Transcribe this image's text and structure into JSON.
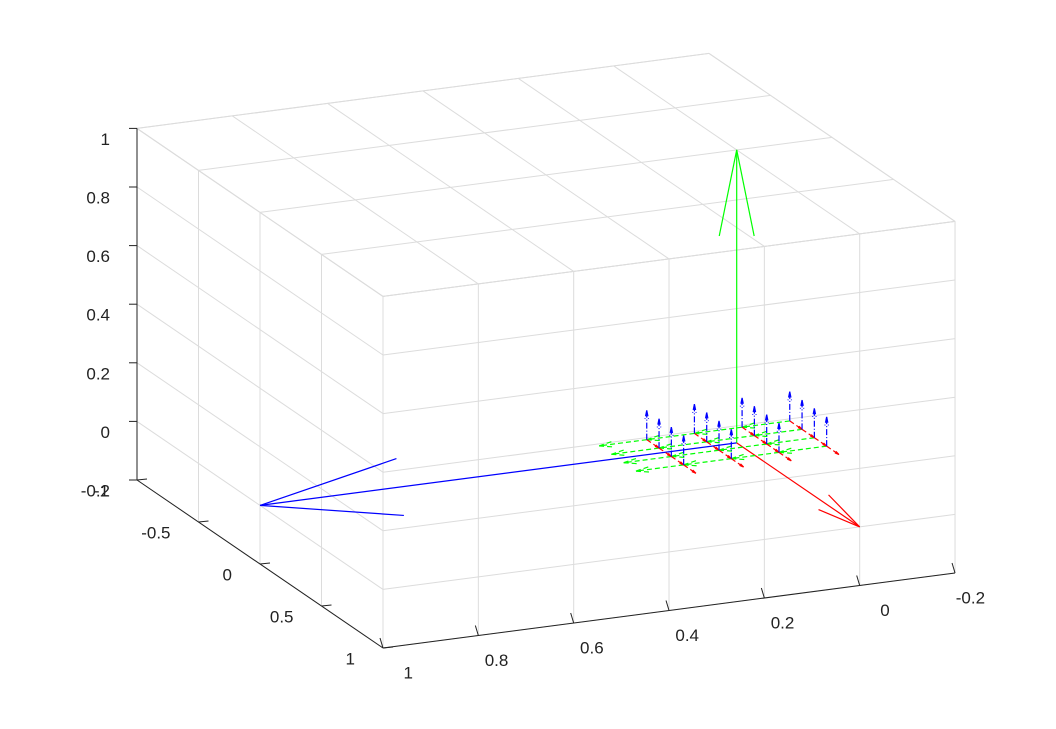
{
  "chart_data": {
    "type": "quiver3",
    "xlim": [
      -0.2,
      1
    ],
    "ylim": [
      -1,
      1
    ],
    "zlim": [
      -0.2,
      1
    ],
    "xticks": [
      -0.2,
      0,
      0.2,
      0.4,
      0.6,
      0.8,
      1
    ],
    "yticks": [
      -1,
      -0.5,
      0,
      0.5,
      1
    ],
    "zticks": [
      -0.2,
      0,
      0.2,
      0.4,
      0.6,
      0.8,
      1
    ],
    "grid": true,
    "quiver": [
      {
        "x": [
          0
        ],
        "y": [
          0
        ],
        "z": [
          0
        ],
        "series": [
          {
            "color": "#0000ff",
            "direction": "x",
            "linestyle": "solid",
            "values": [
              1
            ]
          },
          {
            "color": "#00ff00",
            "direction": "z",
            "linestyle": "solid",
            "values": [
              1
            ]
          },
          {
            "color": "#ff0000",
            "direction": "y",
            "linestyle": "solid",
            "values": [
              1
            ]
          }
        ]
      },
      {
        "x": [
          -0.15,
          -0.15,
          -0.15,
          -0.15,
          -0.05,
          -0.05,
          -0.05,
          -0.05,
          0.05,
          0.05,
          0.05,
          0.05,
          0.15,
          0.15,
          0.15,
          0.15
        ],
        "y": [
          -0.15,
          -0.05,
          0.05,
          0.15,
          -0.15,
          -0.05,
          0.05,
          0.15,
          -0.15,
          -0.05,
          0.05,
          0.15,
          -0.15,
          -0.05,
          0.05,
          0.15
        ],
        "z": [
          0,
          0,
          0,
          0,
          0,
          0,
          0,
          0,
          0,
          0,
          0,
          0,
          0,
          0,
          0,
          0
        ],
        "series": [
          {
            "color": "#00ff00",
            "direction": "x",
            "linestyle": "dashed",
            "values": [
              0.1,
              0.1,
              0.1,
              0.1,
              0.1,
              0.1,
              0.1,
              0.1,
              0.1,
              0.1,
              0.1,
              0.1,
              0.1,
              0.1,
              0.1,
              0.1
            ]
          },
          {
            "color": "#ff0000",
            "direction": "y",
            "linestyle": "dashed",
            "values": [
              0.1,
              0.1,
              0.1,
              0.1,
              0.1,
              0.1,
              0.1,
              0.1,
              0.1,
              0.1,
              0.1,
              0.1,
              0.1,
              0.1,
              0.1,
              0.1
            ]
          },
          {
            "color": "#0000ff",
            "direction": "z",
            "linestyle": "dashdot",
            "values": [
              0.1,
              0.1,
              0.1,
              0.1,
              0.1,
              0.1,
              0.1,
              0.1,
              0.1,
              0.1,
              0.1,
              0.1,
              0.1,
              0.1,
              0.1,
              0.1
            ]
          }
        ]
      }
    ]
  }
}
